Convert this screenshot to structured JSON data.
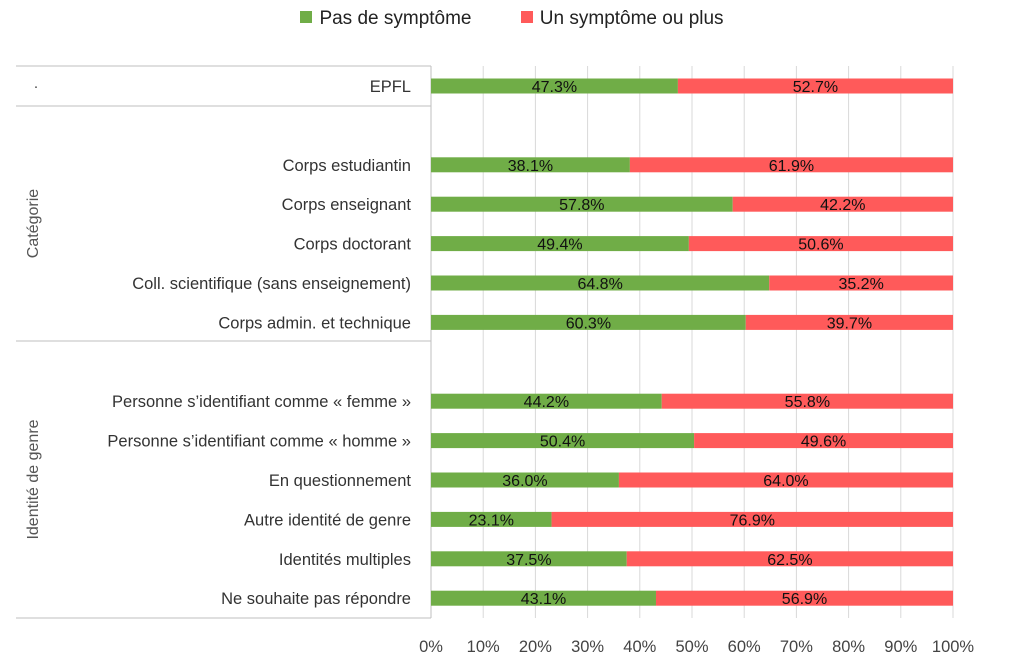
{
  "chart_data": {
    "type": "bar",
    "orientation": "horizontal",
    "stacked": true,
    "title": "",
    "xlabel": "",
    "ylabel": "",
    "xlim": [
      0,
      100
    ],
    "x_ticks": [
      "0%",
      "10%",
      "20%",
      "30%",
      "40%",
      "50%",
      "60%",
      "70%",
      "80%",
      "90%",
      "100%"
    ],
    "grid": "vertical",
    "legend_position": "top",
    "groups": [
      {
        "label": "·",
        "categories": [
          "EPFL"
        ]
      },
      {
        "label": "Catégorie",
        "categories": [
          "Corps estudiantin",
          "Corps enseignant",
          "Corps doctorant",
          "Coll. scientifique (sans enseignement)",
          "Corps admin. et technique"
        ]
      },
      {
        "label": "Identité de genre",
        "categories": [
          "Personne s’identifiant comme « femme »",
          "Personne s’identifiant comme « homme »",
          "En questionnement",
          "Autre identité de genre",
          "Identités multiples",
          "Ne souhaite pas répondre"
        ]
      }
    ],
    "series": [
      {
        "name": "Pas de symptôme",
        "color": "#70ad47",
        "values": [
          47.3,
          38.1,
          57.8,
          49.4,
          64.8,
          60.3,
          44.2,
          50.4,
          36.0,
          23.1,
          37.5,
          43.1
        ],
        "labels": [
          "47.3%",
          "38.1%",
          "57.8%",
          "49.4%",
          "64.8%",
          "60.3%",
          "44.2%",
          "50.4%",
          "36.0%",
          "23.1%",
          "37.5%",
          "43.1%"
        ]
      },
      {
        "name": "Un symptôme ou plus",
        "color": "#ff5a5a",
        "values": [
          52.7,
          61.9,
          42.2,
          50.6,
          35.2,
          39.7,
          55.8,
          49.6,
          64.0,
          76.9,
          62.5,
          56.9
        ],
        "labels": [
          "52.7%",
          "61.9%",
          "42.2%",
          "50.6%",
          "35.2%",
          "39.7%",
          "55.8%",
          "49.6%",
          "64.0%",
          "76.9%",
          "62.5%",
          "56.9%"
        ]
      }
    ]
  }
}
